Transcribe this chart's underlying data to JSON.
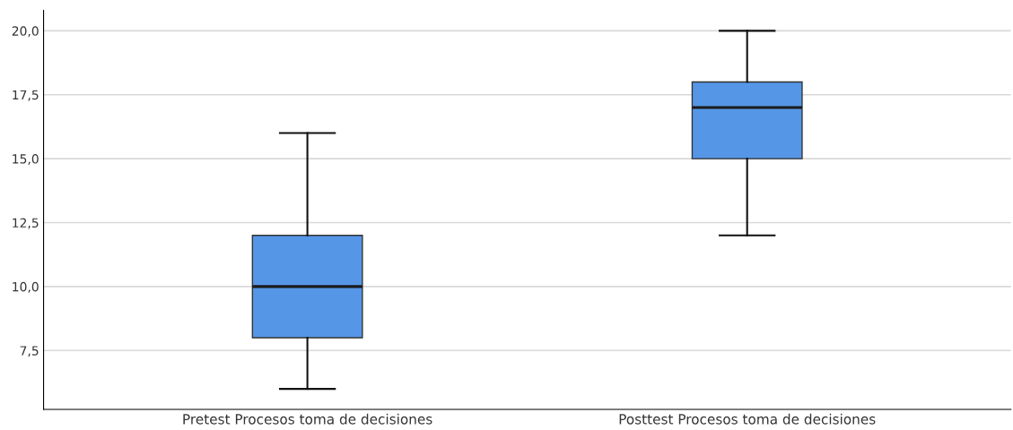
{
  "chart_data": {
    "type": "box",
    "categories": [
      "Pretest Procesos toma de decisiones",
      "Posttest Procesos toma de decisiones"
    ],
    "boxes": [
      {
        "low": 6,
        "q1": 8,
        "median": 10,
        "q3": 12,
        "high": 16
      },
      {
        "low": 12,
        "q1": 15,
        "median": 17,
        "q3": 18,
        "high": 20
      }
    ],
    "color": "#5596e6",
    "ylim": [
      5.2,
      20.8
    ],
    "yticks": [
      {
        "value": 7.5,
        "label": "7,5"
      },
      {
        "value": 10,
        "label": "10,0"
      },
      {
        "value": 12.5,
        "label": "12,5"
      },
      {
        "value": 15,
        "label": "15,0"
      },
      {
        "value": 17.5,
        "label": "17,5"
      },
      {
        "value": 20,
        "label": "20,0"
      }
    ],
    "grid": "y"
  }
}
